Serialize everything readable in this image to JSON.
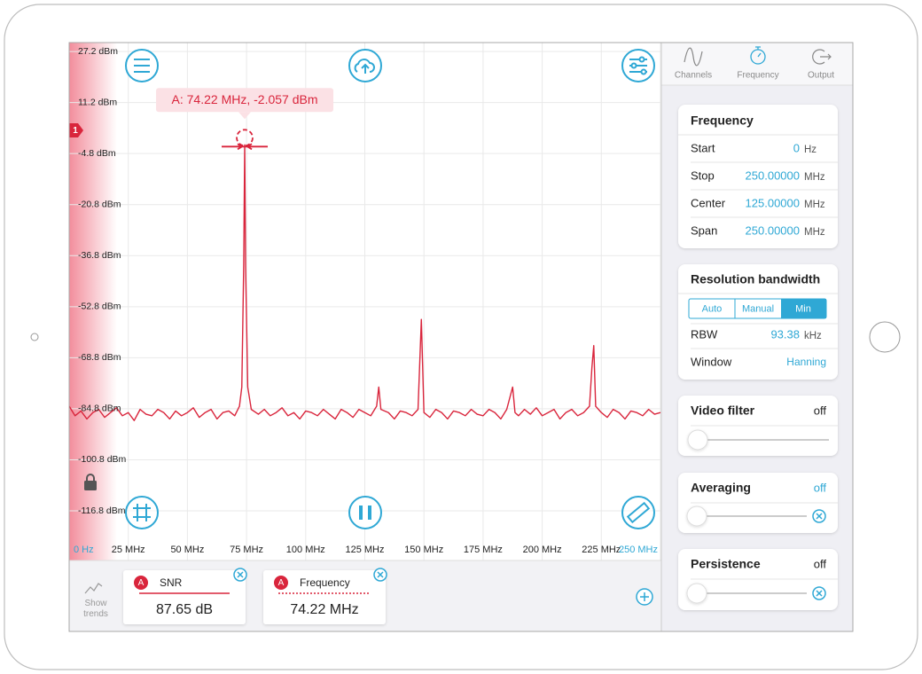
{
  "chart": {
    "type": "line",
    "color": "#d9253c",
    "grid": true,
    "xlim": [
      0,
      250
    ],
    "ylim": [
      -125,
      30
    ],
    "yticks": [
      {
        "value": 27.2,
        "label": "27.2 dBm"
      },
      {
        "value": 11.2,
        "label": "11.2 dBm"
      },
      {
        "value": -4.8,
        "label": "-4.8 dBm"
      },
      {
        "value": -20.8,
        "label": "-20.8 dBm"
      },
      {
        "value": -36.8,
        "label": "-36.8 dBm"
      },
      {
        "value": -52.8,
        "label": "-52.8 dBm"
      },
      {
        "value": -68.8,
        "label": "-68.8 dBm"
      },
      {
        "value": -84.8,
        "label": "-84.8 dBm"
      },
      {
        "value": -100.8,
        "label": "-100.8 dBm"
      },
      {
        "value": -116.8,
        "label": "-116.8 dBm"
      }
    ],
    "xticks": [
      {
        "value": 0,
        "label": "0 Hz"
      },
      {
        "value": 25,
        "label": "25 MHz"
      },
      {
        "value": 50,
        "label": "50 MHz"
      },
      {
        "value": 75,
        "label": "75 MHz"
      },
      {
        "value": 100,
        "label": "100 MHz"
      },
      {
        "value": 125,
        "label": "125 MHz"
      },
      {
        "value": 150,
        "label": "150 MHz"
      },
      {
        "value": 175,
        "label": "175 MHz"
      },
      {
        "value": 200,
        "label": "200 MHz"
      },
      {
        "value": 225,
        "label": "225 MHz"
      },
      {
        "value": 250,
        "label": "250 MHz"
      }
    ],
    "x": [
      0,
      2.5,
      5,
      7.5,
      10,
      12.5,
      15,
      17.5,
      20,
      22.5,
      25,
      27.5,
      30,
      32.5,
      35,
      37.5,
      40,
      42.5,
      45,
      47.5,
      50,
      52.5,
      55,
      57.5,
      60,
      62.5,
      65,
      67.5,
      70,
      72,
      73,
      73.8,
      74.22,
      74.6,
      75.5,
      77,
      80,
      82.5,
      85,
      87.5,
      90,
      92.5,
      95,
      97.5,
      100,
      102.5,
      105,
      107.5,
      110,
      112.5,
      115,
      117.5,
      120,
      122.5,
      125,
      127.5,
      130,
      130.9,
      131.8,
      135,
      137.5,
      140,
      142.5,
      145,
      147.5,
      148.9,
      150,
      152.5,
      155,
      157.5,
      160,
      162.5,
      165,
      167.5,
      170,
      172.5,
      175,
      177.5,
      180,
      182.5,
      185,
      187.5,
      188.5,
      190,
      192.5,
      195,
      197.5,
      200,
      202.5,
      205,
      207.5,
      210,
      212.5,
      215,
      217.5,
      220,
      221,
      221.8,
      222.6,
      225,
      227.5,
      230,
      232.5,
      235,
      237.5,
      240,
      242.5,
      245,
      247.5,
      250
    ],
    "values": [
      -84,
      -87,
      -85.5,
      -88,
      -86,
      -85,
      -87.5,
      -86,
      -84.5,
      -87,
      -86,
      -88.5,
      -85,
      -86.5,
      -87,
      -85,
      -86,
      -88,
      -85.5,
      -87,
      -86,
      -84.5,
      -87.5,
      -86,
      -85,
      -88,
      -86,
      -85.5,
      -87,
      -84,
      -78,
      -40,
      -2.057,
      -40,
      -78,
      -85,
      -86.5,
      -85,
      -87,
      -86,
      -84.5,
      -87,
      -86,
      -88,
      -85.5,
      -86,
      -87,
      -85,
      -86.5,
      -88,
      -85,
      -86,
      -87.5,
      -85,
      -86,
      -87,
      -84,
      -78,
      -85,
      -86,
      -88,
      -85.5,
      -86,
      -87,
      -85,
      -56.8,
      -86,
      -87.5,
      -85,
      -86,
      -88,
      -85.5,
      -86,
      -87,
      -85,
      -86.5,
      -87,
      -85,
      -86,
      -88,
      -85,
      -78,
      -86,
      -87,
      -85,
      -86.5,
      -84.5,
      -87,
      -86,
      -85,
      -88,
      -86,
      -85,
      -87,
      -86,
      -84,
      -72,
      -65,
      -84,
      -86,
      -87.5,
      -85,
      -86,
      -88,
      -85.5,
      -86,
      -87,
      -85,
      -86.5,
      -86
    ],
    "marker": {
      "label": "A: 74.22 MHz, -2.057 dBm",
      "x": 74.22,
      "y": -2.057
    },
    "badge": "1"
  },
  "bottom_bar": {
    "show_trends": "Show trends",
    "measurements": [
      {
        "channel": "A",
        "name": "SNR",
        "value": "87.65 dB"
      },
      {
        "channel": "A",
        "name": "Frequency",
        "value": "74.22 MHz"
      }
    ]
  },
  "tabs": [
    "Channels",
    "Frequency",
    "Output"
  ],
  "frequency": {
    "title": "Frequency",
    "rows": [
      [
        "Start",
        "0",
        "Hz"
      ],
      [
        "Stop",
        "250.00000",
        "MHz"
      ],
      [
        "Center",
        "125.00000",
        "MHz"
      ],
      [
        "Span",
        "250.00000",
        "MHz"
      ]
    ]
  },
  "resolution_bandwidth": {
    "title": "Resolution bandwidth",
    "modes": [
      "Auto",
      "Manual",
      "Min"
    ],
    "rbw": [
      "RBW",
      "93.38",
      "kHz"
    ],
    "window": [
      "Window",
      "Hanning"
    ]
  },
  "video_filter": {
    "title": "Video filter",
    "state": "off"
  },
  "averaging": {
    "title": "Averaging",
    "state": "off"
  },
  "persistence": {
    "title": "Persistence",
    "state": "off"
  }
}
